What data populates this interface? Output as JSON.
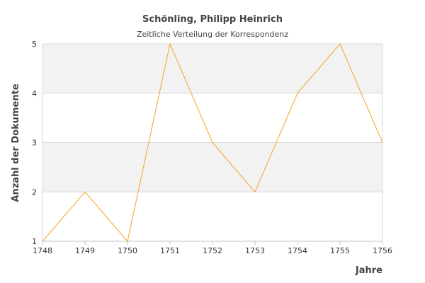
{
  "chart_data": {
    "type": "line",
    "title": "Schönling, Philipp Heinrich",
    "subtitle": "Zeitliche Verteilung der Korrespondenz",
    "xlabel": "Jahre",
    "ylabel": "Anzahl der Dokumente",
    "x": [
      1748,
      1749,
      1750,
      1751,
      1752,
      1753,
      1754,
      1755,
      1756
    ],
    "series": [
      {
        "values": [
          1,
          2,
          1,
          5,
          3,
          2,
          4,
          5,
          3
        ]
      }
    ],
    "xlim": [
      1748,
      1756
    ],
    "ylim": [
      1,
      5
    ],
    "yticks": [
      1,
      2,
      3,
      4,
      5
    ],
    "grid": true,
    "legend": false
  },
  "colors": {
    "line": "#F7A128",
    "band": "#F2F2F2",
    "grid": "#D8D8D8",
    "text": "#444444"
  }
}
